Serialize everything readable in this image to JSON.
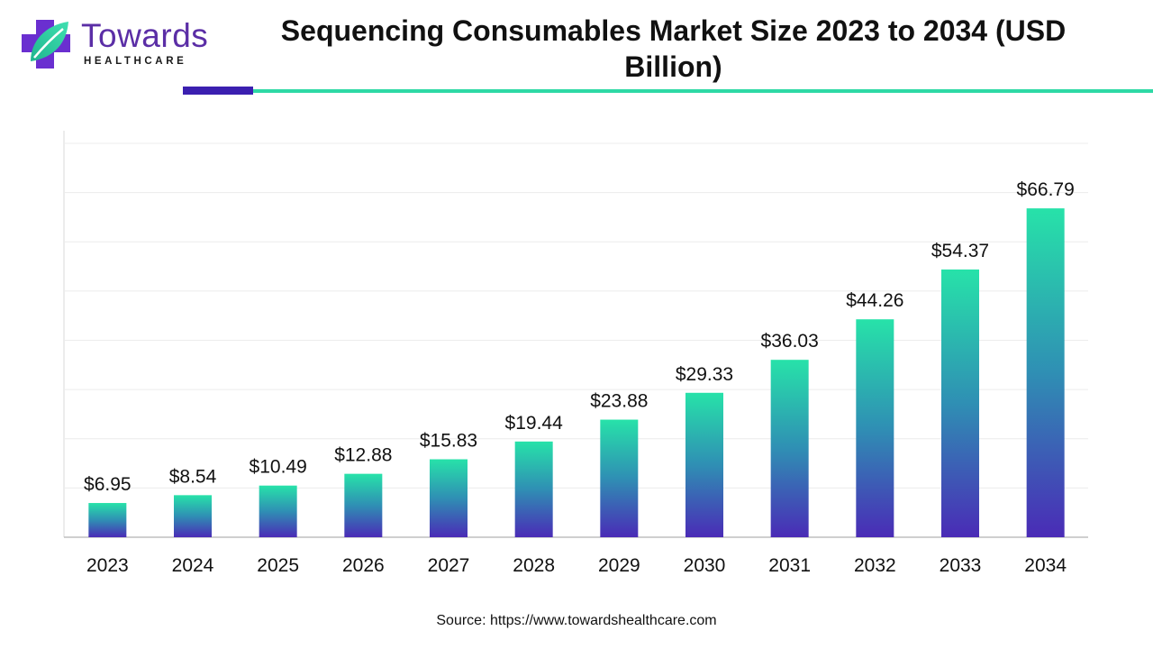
{
  "brand": {
    "name": "Towards",
    "tagline": "HEALTHCARE"
  },
  "chart_data": {
    "type": "bar",
    "title": "Sequencing Consumables Market Size 2023 to 2034 (USD Billion)",
    "categories": [
      "2023",
      "2024",
      "2025",
      "2026",
      "2027",
      "2028",
      "2029",
      "2030",
      "2031",
      "2032",
      "2033",
      "2034"
    ],
    "values": [
      6.95,
      8.54,
      10.49,
      12.88,
      15.83,
      19.44,
      23.88,
      29.33,
      36.03,
      44.26,
      54.37,
      66.79
    ],
    "value_labels": [
      "$6.95",
      "$8.54",
      "$10.49",
      "$12.88",
      "$15.83",
      "$19.44",
      "$23.88",
      "$29.33",
      "$36.03",
      "$44.26",
      "$54.37",
      "$66.79"
    ],
    "xlabel": "",
    "ylabel": "",
    "ylim": [
      0,
      80
    ],
    "grid": true,
    "legend": "none",
    "bar_gradient": {
      "top": "#27e2a9",
      "middle": "#2f8fb4",
      "bottom": "#4a2bb6"
    }
  },
  "footer": {
    "source": "Source: https://www.towardshealthcare.com"
  },
  "colors": {
    "accent_purple": "#5b2ea6",
    "accent_dark": "#3b1fb0",
    "accent_green": "#2ed9a5"
  }
}
